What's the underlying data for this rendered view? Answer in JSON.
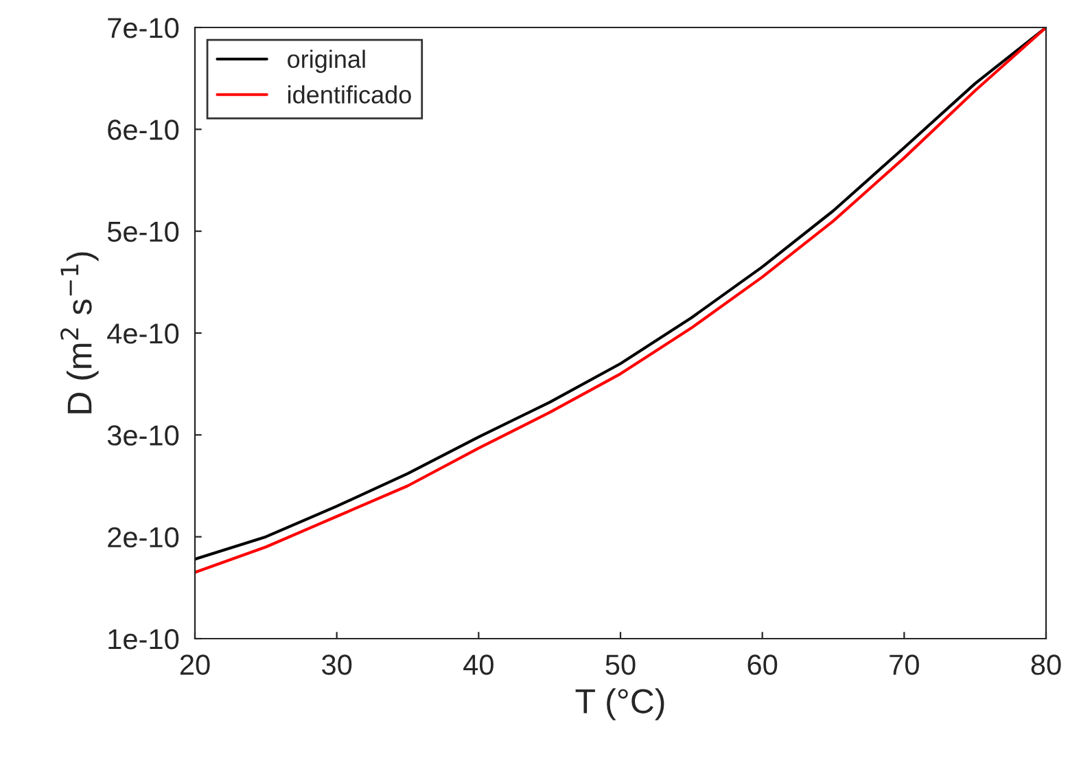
{
  "chart_data": {
    "type": "line",
    "xlabel": "T (°C)",
    "ylabel": "D (m$^{2}$ s$^{−1}$)",
    "x": [
      20,
      25,
      30,
      35,
      40,
      45,
      50,
      55,
      60,
      65,
      70,
      75,
      80
    ],
    "series": [
      {
        "name": "original",
        "color": "#000000",
        "values": [
          1.78e-10,
          2e-10,
          2.3e-10,
          2.62e-10,
          2.98e-10,
          3.32e-10,
          3.7e-10,
          4.15e-10,
          4.65e-10,
          5.2e-10,
          5.82e-10,
          6.45e-10,
          7e-10
        ]
      },
      {
        "name": "identificado",
        "color": "#ff0000",
        "values": [
          1.65e-10,
          1.9e-10,
          2.2e-10,
          2.5e-10,
          2.87e-10,
          3.22e-10,
          3.6e-10,
          4.05e-10,
          4.55e-10,
          5.1e-10,
          5.72e-10,
          6.38e-10,
          7e-10
        ]
      }
    ],
    "xlim": [
      20,
      80
    ],
    "xticks": [
      20,
      30,
      40,
      50,
      60,
      70,
      80
    ],
    "ylim": [
      1e-10,
      7e-10
    ],
    "yticks": [
      {
        "value": 1e-10,
        "label": "1e-10"
      },
      {
        "value": 2e-10,
        "label": "2e-10"
      },
      {
        "value": 3e-10,
        "label": "3e-10"
      },
      {
        "value": 4e-10,
        "label": "4e-10"
      },
      {
        "value": 5e-10,
        "label": "5e-10"
      },
      {
        "value": 6e-10,
        "label": "6e-10"
      },
      {
        "value": 7e-10,
        "label": "7e-10"
      }
    ],
    "grid": false,
    "legend": "top left",
    "marker": "none",
    "line_style": "solid"
  }
}
